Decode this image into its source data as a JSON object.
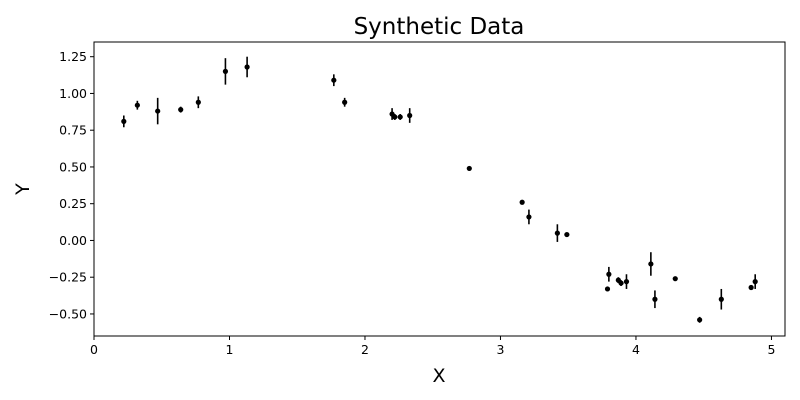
{
  "chart_data": {
    "type": "scatter",
    "title": "Synthetic Data",
    "xlabel": "X",
    "ylabel": "Y",
    "xlim": [
      0,
      5.1
    ],
    "ylim": [
      -0.65,
      1.35
    ],
    "xticks": [
      0,
      1,
      2,
      3,
      4,
      5
    ],
    "xtick_labels": [
      "0",
      "1",
      "2",
      "3",
      "4",
      "5"
    ],
    "yticks": [
      -0.5,
      -0.25,
      0.0,
      0.25,
      0.5,
      0.75,
      1.0,
      1.25
    ],
    "ytick_labels": [
      "−0.50",
      "−0.25",
      "0.00",
      "0.25",
      "0.50",
      "0.75",
      "1.00",
      "1.25"
    ],
    "grid": false,
    "marker_color": "#000000",
    "points": [
      {
        "x": 0.22,
        "y": 0.81,
        "err": 0.04
      },
      {
        "x": 0.32,
        "y": 0.92,
        "err": 0.03
      },
      {
        "x": 0.47,
        "y": 0.88,
        "err": 0.09
      },
      {
        "x": 0.64,
        "y": 0.89,
        "err": 0.02
      },
      {
        "x": 0.77,
        "y": 0.94,
        "err": 0.04
      },
      {
        "x": 0.97,
        "y": 1.15,
        "err": 0.09
      },
      {
        "x": 1.13,
        "y": 1.18,
        "err": 0.07
      },
      {
        "x": 1.77,
        "y": 1.09,
        "err": 0.04
      },
      {
        "x": 1.85,
        "y": 0.94,
        "err": 0.03
      },
      {
        "x": 2.2,
        "y": 0.86,
        "err": 0.04
      },
      {
        "x": 2.22,
        "y": 0.84,
        "err": 0.02
      },
      {
        "x": 2.26,
        "y": 0.84,
        "err": 0.02
      },
      {
        "x": 2.33,
        "y": 0.85,
        "err": 0.05
      },
      {
        "x": 2.77,
        "y": 0.49,
        "err": 0.01
      },
      {
        "x": 3.16,
        "y": 0.26,
        "err": 0.01
      },
      {
        "x": 3.21,
        "y": 0.16,
        "err": 0.05
      },
      {
        "x": 3.42,
        "y": 0.05,
        "err": 0.06
      },
      {
        "x": 3.49,
        "y": 0.04,
        "err": 0.01
      },
      {
        "x": 3.79,
        "y": -0.33,
        "err": 0.01
      },
      {
        "x": 3.8,
        "y": -0.23,
        "err": 0.05
      },
      {
        "x": 3.87,
        "y": -0.27,
        "err": 0.02
      },
      {
        "x": 3.89,
        "y": -0.29,
        "err": 0.02
      },
      {
        "x": 3.93,
        "y": -0.28,
        "err": 0.05
      },
      {
        "x": 4.11,
        "y": -0.16,
        "err": 0.08
      },
      {
        "x": 4.14,
        "y": -0.4,
        "err": 0.06
      },
      {
        "x": 4.29,
        "y": -0.26,
        "err": 0.01
      },
      {
        "x": 4.47,
        "y": -0.54,
        "err": 0.02
      },
      {
        "x": 4.63,
        "y": -0.4,
        "err": 0.07
      },
      {
        "x": 4.85,
        "y": -0.32,
        "err": 0.01
      },
      {
        "x": 4.88,
        "y": -0.28,
        "err": 0.05
      }
    ]
  }
}
